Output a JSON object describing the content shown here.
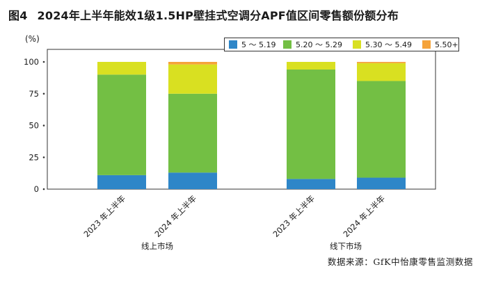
{
  "figure": {
    "number": "图4",
    "title": "2024年上半年能效1级1.5HP壁挂式空调分APF值区间零售额份额分布",
    "unit": "(%)",
    "source": "数据来源：GfK中怡康零售监测数据"
  },
  "legend": [
    {
      "label": "5 ～ 5.19",
      "color": "#2e86c8"
    },
    {
      "label": "5.20 ～ 5.29",
      "color": "#73bf44"
    },
    {
      "label": "5.30 ～ 5.49",
      "color": "#d9e021"
    },
    {
      "label": "5.50+",
      "color": "#f5a33a"
    }
  ],
  "chart_data": {
    "type": "bar",
    "stacked": true,
    "ylim": [
      0,
      100
    ],
    "yticks": [
      0,
      25,
      50,
      75,
      100
    ],
    "groups": [
      {
        "label": "线上市场",
        "categories": [
          "2023 年上半年",
          "2024 年上半年"
        ]
      },
      {
        "label": "线下市场",
        "categories": [
          "2023 年上半年",
          "2024 年上半年"
        ]
      }
    ],
    "categories": [
      "2023 年上半年",
      "2024 年上半年",
      "2023 年上半年",
      "2024 年上半年"
    ],
    "series": [
      {
        "name": "5 ～ 5.19",
        "color": "#2e86c8",
        "values": [
          11,
          13,
          8,
          9
        ]
      },
      {
        "name": "5.20 ～ 5.29",
        "color": "#73bf44",
        "values": [
          79,
          62,
          86,
          76
        ]
      },
      {
        "name": "5.30 ～ 5.49",
        "color": "#d9e021",
        "values": [
          10,
          23,
          6,
          14
        ]
      },
      {
        "name": "5.50+",
        "color": "#f5a33a",
        "values": [
          0,
          2,
          0,
          1
        ]
      }
    ]
  }
}
